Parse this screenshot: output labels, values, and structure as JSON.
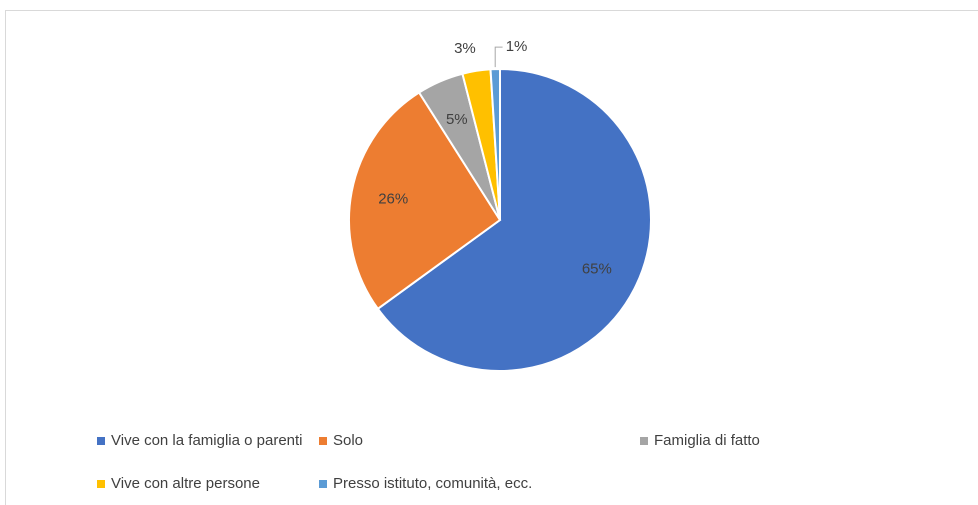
{
  "chart_data": {
    "type": "pie",
    "categories": [
      "Vive con la famiglia o parenti",
      "Solo",
      "Famiglia di fatto",
      "Vive con altre persone",
      "Presso istituto, comunità, ecc."
    ],
    "values": [
      65,
      26,
      5,
      3,
      1
    ],
    "value_labels": [
      "65%",
      "26%",
      "5%",
      "3%",
      "1%"
    ],
    "colors": [
      "#4472c4",
      "#ed7d31",
      "#a5a5a5",
      "#ffc000",
      "#5b9bd5"
    ],
    "legend": "bottom"
  }
}
